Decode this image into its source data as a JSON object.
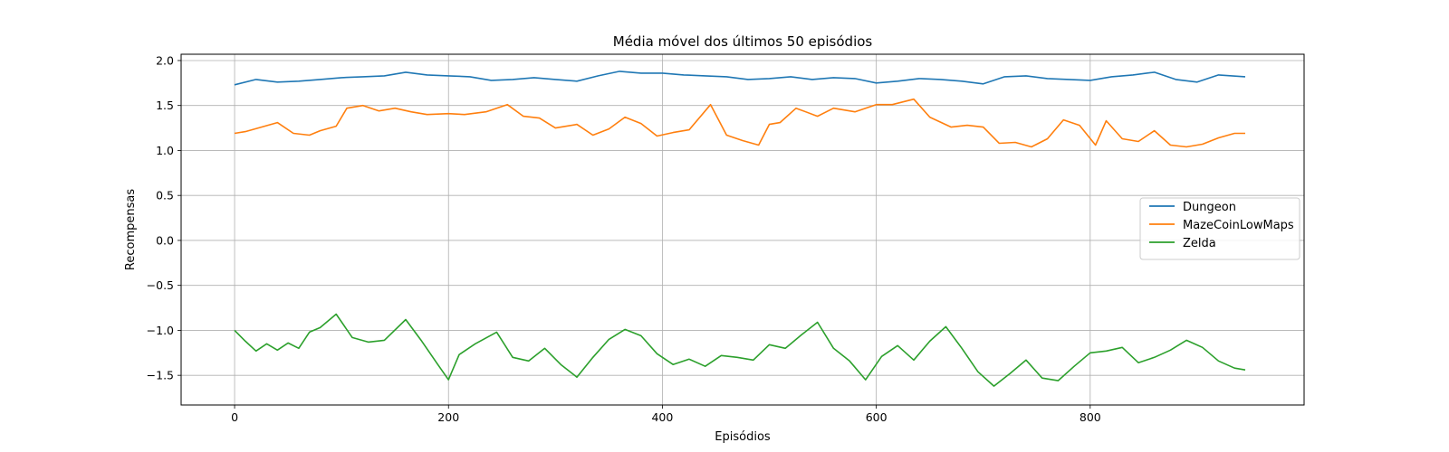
{
  "chart_data": {
    "type": "line",
    "title": "Média móvel dos últimos 50 episódios",
    "xlabel": "Episódios",
    "ylabel": "Recompensas",
    "xlim": [
      -50,
      1000
    ],
    "ylim": [
      -1.83,
      2.07
    ],
    "xticks": [
      0,
      200,
      400,
      600,
      800
    ],
    "yticks": [
      -1.5,
      -1.0,
      -0.5,
      0.0,
      0.5,
      1.0,
      1.5,
      2.0
    ],
    "grid": true,
    "legend_position": "center-right",
    "series": [
      {
        "name": "Dungeon",
        "color": "#1f77b4",
        "x": [
          0,
          20,
          40,
          60,
          80,
          100,
          120,
          140,
          160,
          180,
          200,
          220,
          240,
          260,
          280,
          300,
          320,
          340,
          360,
          380,
          400,
          420,
          440,
          460,
          480,
          500,
          520,
          540,
          560,
          580,
          600,
          620,
          640,
          660,
          680,
          700,
          720,
          740,
          760,
          780,
          800,
          820,
          840,
          860,
          880,
          900,
          920,
          945
        ],
        "y": [
          1.73,
          1.79,
          1.76,
          1.77,
          1.79,
          1.81,
          1.82,
          1.83,
          1.87,
          1.84,
          1.83,
          1.82,
          1.78,
          1.79,
          1.81,
          1.79,
          1.77,
          1.83,
          1.88,
          1.86,
          1.86,
          1.84,
          1.83,
          1.82,
          1.79,
          1.8,
          1.82,
          1.79,
          1.81,
          1.8,
          1.75,
          1.77,
          1.8,
          1.79,
          1.77,
          1.74,
          1.82,
          1.83,
          1.8,
          1.79,
          1.78,
          1.82,
          1.84,
          1.87,
          1.79,
          1.76,
          1.84,
          1.82
        ]
      },
      {
        "name": "MazeCoinLowMaps",
        "color": "#ff7f0e",
        "x": [
          0,
          10,
          25,
          40,
          55,
          70,
          80,
          95,
          105,
          120,
          135,
          150,
          165,
          180,
          200,
          215,
          235,
          255,
          270,
          285,
          300,
          320,
          335,
          350,
          365,
          380,
          395,
          410,
          425,
          445,
          460,
          475,
          490,
          500,
          510,
          525,
          545,
          560,
          580,
          600,
          615,
          635,
          650,
          670,
          685,
          700,
          715,
          730,
          745,
          760,
          775,
          790,
          805,
          815,
          830,
          845,
          860,
          875,
          890,
          905,
          920,
          935,
          945
        ],
        "y": [
          1.19,
          1.21,
          1.26,
          1.31,
          1.19,
          1.17,
          1.22,
          1.27,
          1.47,
          1.5,
          1.44,
          1.47,
          1.43,
          1.4,
          1.41,
          1.4,
          1.43,
          1.51,
          1.38,
          1.36,
          1.25,
          1.29,
          1.17,
          1.24,
          1.37,
          1.3,
          1.16,
          1.2,
          1.23,
          1.51,
          1.17,
          1.11,
          1.06,
          1.29,
          1.31,
          1.47,
          1.38,
          1.47,
          1.43,
          1.51,
          1.51,
          1.57,
          1.37,
          1.26,
          1.28,
          1.26,
          1.08,
          1.09,
          1.04,
          1.13,
          1.34,
          1.28,
          1.06,
          1.33,
          1.13,
          1.1,
          1.22,
          1.06,
          1.04,
          1.07,
          1.14,
          1.19,
          1.19
        ]
      },
      {
        "name": "Zelda",
        "color": "#2ca02c",
        "x": [
          0,
          10,
          20,
          30,
          40,
          50,
          60,
          70,
          80,
          95,
          110,
          125,
          140,
          160,
          175,
          190,
          200,
          210,
          225,
          245,
          260,
          275,
          290,
          305,
          320,
          335,
          350,
          365,
          380,
          395,
          410,
          425,
          440,
          455,
          470,
          485,
          500,
          515,
          530,
          545,
          560,
          575,
          590,
          605,
          620,
          635,
          650,
          665,
          680,
          695,
          710,
          725,
          740,
          755,
          770,
          785,
          800,
          815,
          830,
          845,
          860,
          875,
          890,
          905,
          920,
          935,
          945
        ],
        "y": [
          -1.0,
          -1.12,
          -1.23,
          -1.15,
          -1.22,
          -1.14,
          -1.2,
          -1.02,
          -0.97,
          -0.82,
          -1.08,
          -1.13,
          -1.11,
          -0.88,
          -1.12,
          -1.38,
          -1.55,
          -1.27,
          -1.15,
          -1.02,
          -1.3,
          -1.34,
          -1.2,
          -1.38,
          -1.52,
          -1.3,
          -1.1,
          -0.99,
          -1.06,
          -1.26,
          -1.38,
          -1.32,
          -1.4,
          -1.28,
          -1.3,
          -1.33,
          -1.16,
          -1.2,
          -1.05,
          -0.91,
          -1.2,
          -1.34,
          -1.55,
          -1.29,
          -1.17,
          -1.33,
          -1.12,
          -0.96,
          -1.2,
          -1.46,
          -1.62,
          -1.48,
          -1.33,
          -1.53,
          -1.56,
          -1.4,
          -1.25,
          -1.23,
          -1.19,
          -1.36,
          -1.3,
          -1.22,
          -1.11,
          -1.19,
          -1.34,
          -1.42,
          -1.44
        ]
      }
    ]
  }
}
